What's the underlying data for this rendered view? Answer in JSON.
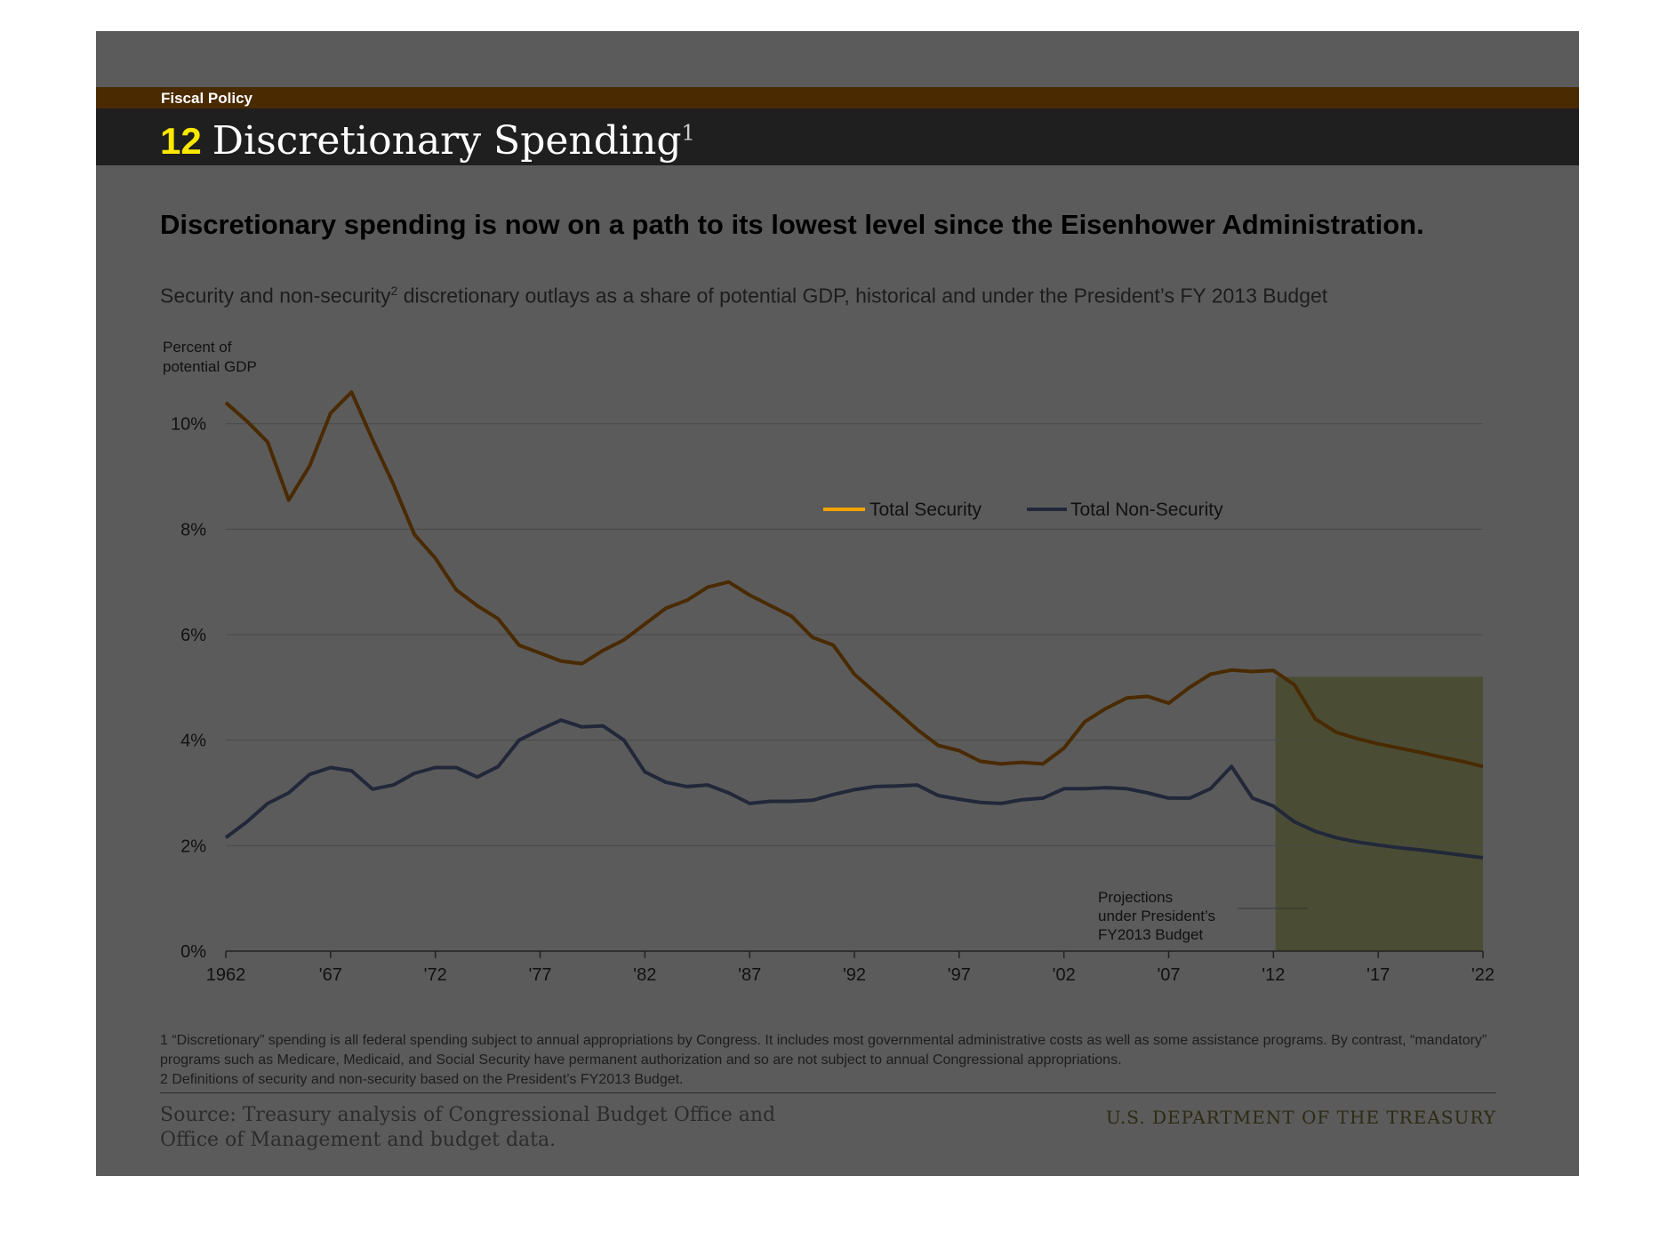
{
  "header": {
    "section_label": "Fiscal Policy",
    "chart_number": "12",
    "title": "Discretionary Spending",
    "title_footnote": "1"
  },
  "headline": "Discretionary spending is now on a path to its lowest level since the Eisenhower Administration.",
  "subheadline": {
    "before": "Security and non-security",
    "sup": "2",
    "after": " discretionary outlays as a share of potential GDP, historical and under the President’s FY 2013 Budget"
  },
  "footnotes": [
    "1 “Discretionary” spending is all federal spending subject to annual appropriations by Congress. It includes most governmental administrative costs as well as some assistance programs. By contrast, “mandatory” programs such as Medicare, Medicaid, and Social Security have permanent authorization and so are not subject to annual Congressional appropriations.",
    "2 Definitions of security and non-security based on the President’s FY2013 Budget."
  ],
  "source": "Source: Treasury analysis of Congressional Budget Office and Office of Management and budget data.",
  "department": "U.S. DEPARTMENT OF THE TREASURY",
  "colors": {
    "security": "#f5a300",
    "non_security": "#22283a",
    "projection_shade": "#4a4d34"
  },
  "chart_data": {
    "type": "line",
    "ylabel_lines": [
      "Percent of",
      "potential GDP"
    ],
    "ylim": [
      0,
      10.5
    ],
    "xlim": [
      1962,
      2022
    ],
    "yticks": [
      0,
      2,
      4,
      6,
      8,
      10
    ],
    "ytick_labels": [
      "0%",
      "2%",
      "4%",
      "6%",
      "8%",
      "10%"
    ],
    "xticks": [
      1962,
      1967,
      1972,
      1977,
      1982,
      1987,
      1992,
      1997,
      2002,
      2007,
      2012,
      2017,
      2022
    ],
    "xtick_labels": [
      "1962",
      "'67",
      "'72",
      "'77",
      "'82",
      "'87",
      "'92",
      "'97",
      "'02",
      "'07",
      "'12",
      "'17",
      "'22"
    ],
    "grid": "horizontal",
    "legend_position": "top-right",
    "projection_region": {
      "start": 2012.1,
      "end": 2022
    },
    "annotation_lines": [
      "Projections",
      "under President’s",
      "FY2013 Budget"
    ],
    "x": [
      1962,
      1963,
      1964,
      1965,
      1966,
      1967,
      1968,
      1969,
      1970,
      1971,
      1972,
      1973,
      1974,
      1975,
      1976,
      1977,
      1978,
      1979,
      1980,
      1981,
      1982,
      1983,
      1984,
      1985,
      1986,
      1987,
      1988,
      1989,
      1990,
      1991,
      1992,
      1993,
      1994,
      1995,
      1996,
      1997,
      1998,
      1999,
      2000,
      2001,
      2002,
      2003,
      2004,
      2005,
      2006,
      2007,
      2008,
      2009,
      2010,
      2011,
      2012,
      2013,
      2014,
      2015,
      2016,
      2017,
      2018,
      2019,
      2020,
      2021,
      2022
    ],
    "series": [
      {
        "name": "Total Security",
        "values": [
          10.4,
          10.05,
          9.65,
          8.55,
          9.2,
          10.2,
          10.6,
          9.7,
          8.85,
          7.9,
          7.45,
          6.85,
          6.55,
          6.3,
          5.8,
          5.65,
          5.5,
          5.45,
          5.7,
          5.9,
          6.2,
          6.5,
          6.65,
          6.9,
          7.0,
          6.75,
          6.55,
          6.35,
          5.95,
          5.8,
          5.25,
          4.9,
          4.55,
          4.2,
          3.9,
          3.8,
          3.6,
          3.55,
          3.58,
          3.55,
          3.85,
          4.35,
          4.6,
          4.8,
          4.83,
          4.7,
          5.0,
          5.25,
          5.33,
          5.3,
          5.32,
          5.05,
          4.4,
          4.15,
          4.03,
          3.93,
          3.85,
          3.77,
          3.68,
          3.6,
          3.5
        ]
      },
      {
        "name": "Total Non-Security",
        "values": [
          2.15,
          2.45,
          2.8,
          3.0,
          3.35,
          3.48,
          3.42,
          3.07,
          3.15,
          3.37,
          3.48,
          3.48,
          3.3,
          3.5,
          4.0,
          4.2,
          4.38,
          4.25,
          4.27,
          4.0,
          3.4,
          3.2,
          3.12,
          3.15,
          3.0,
          2.8,
          2.84,
          2.84,
          2.86,
          2.97,
          3.06,
          3.12,
          3.13,
          3.15,
          2.95,
          2.88,
          2.82,
          2.8,
          2.87,
          2.9,
          3.08,
          3.08,
          3.1,
          3.08,
          3.0,
          2.9,
          2.9,
          3.08,
          3.5,
          2.9,
          2.75,
          2.45,
          2.27,
          2.15,
          2.07,
          2.01,
          1.96,
          1.92,
          1.87,
          1.82,
          1.77
        ]
      }
    ]
  }
}
